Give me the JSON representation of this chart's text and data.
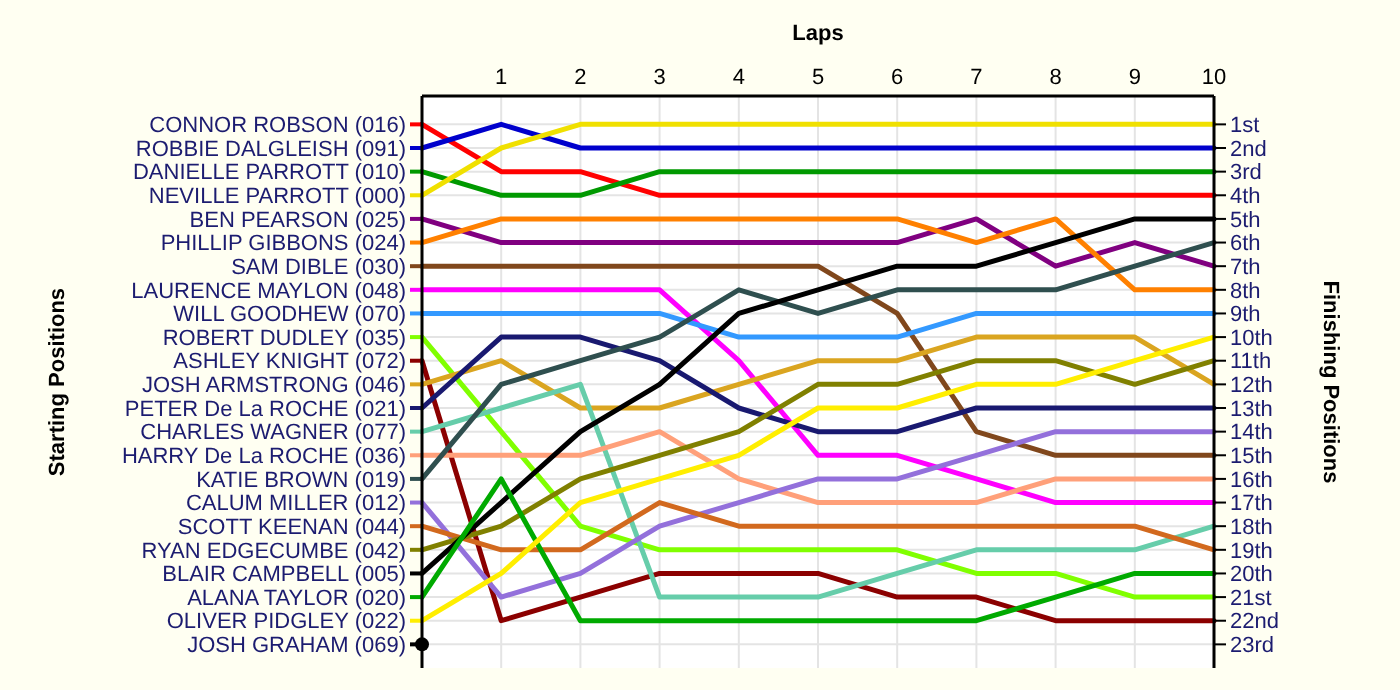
{
  "chart_data": {
    "type": "line",
    "xlabel": "Laps",
    "legend_title": "Starting Positions",
    "legend": "left",
    "y2label": "Finishing Positions",
    "x": [
      0,
      1,
      2,
      3,
      4,
      5,
      6,
      7,
      8,
      9,
      10
    ],
    "xlim": [
      0,
      10
    ],
    "xticks": [
      1,
      2,
      3,
      4,
      5,
      6,
      7,
      8,
      9,
      10
    ],
    "y2lim": [
      24,
      -0.2
    ],
    "y2ticks": [
      {
        "value": 1,
        "label": "1st"
      },
      {
        "value": 2,
        "label": "2nd"
      },
      {
        "value": 3,
        "label": "3rd"
      },
      {
        "value": 4,
        "label": "4th"
      },
      {
        "value": 5,
        "label": "5th"
      },
      {
        "value": 6,
        "label": "6th"
      },
      {
        "value": 7,
        "label": "7th"
      },
      {
        "value": 8,
        "label": "8th"
      },
      {
        "value": 9,
        "label": "9th"
      },
      {
        "value": 10,
        "label": "10th"
      },
      {
        "value": 11,
        "label": "11th"
      },
      {
        "value": 12,
        "label": "12th"
      },
      {
        "value": 13,
        "label": "13th"
      },
      {
        "value": 14,
        "label": "14th"
      },
      {
        "value": 15,
        "label": "15th"
      },
      {
        "value": 16,
        "label": "16th"
      },
      {
        "value": 17,
        "label": "17th"
      },
      {
        "value": 18,
        "label": "18th"
      },
      {
        "value": 19,
        "label": "19th"
      },
      {
        "value": 20,
        "label": "20th"
      },
      {
        "value": 21,
        "label": "21st"
      },
      {
        "value": 22,
        "label": "22nd"
      },
      {
        "value": 23,
        "label": "23rd"
      }
    ],
    "grid": true,
    "marker": "none",
    "line_style": "solid",
    "series": [
      {
        "name": "CONNOR ROBSON (016)",
        "axis": "y2",
        "color": "#ff0000",
        "values": [
          1,
          3,
          3,
          4,
          4,
          4,
          4,
          4,
          4,
          4,
          4
        ]
      },
      {
        "name": "ROBBIE DALGLEISH (091)",
        "axis": "y2",
        "color": "#0000cc",
        "values": [
          2,
          1,
          2,
          2,
          2,
          2,
          2,
          2,
          2,
          2,
          2
        ]
      },
      {
        "name": "DANIELLE PARROTT (010)",
        "axis": "y2",
        "color": "#009900",
        "values": [
          3,
          4,
          4,
          3,
          3,
          3,
          3,
          3,
          3,
          3,
          3
        ]
      },
      {
        "name": "NEVILLE PARROTT (000)",
        "axis": "y2",
        "color": "#f0e000",
        "values": [
          4,
          2,
          1,
          1,
          1,
          1,
          1,
          1,
          1,
          1,
          1
        ]
      },
      {
        "name": "BEN PEARSON (025)",
        "axis": "y2",
        "color": "#800080",
        "values": [
          5,
          6,
          6,
          6,
          6,
          6,
          6,
          5,
          7,
          6,
          7
        ]
      },
      {
        "name": "PHILLIP GIBBONS (024)",
        "axis": "y2",
        "color": "#ff8000",
        "values": [
          6,
          5,
          5,
          5,
          5,
          5,
          5,
          6,
          5,
          8,
          8
        ]
      },
      {
        "name": "SAM DIBLE (030)",
        "axis": "y2",
        "color": "#80471c",
        "values": [
          7,
          7,
          7,
          7,
          7,
          7,
          9,
          14,
          15,
          15,
          15
        ]
      },
      {
        "name": "LAURENCE MAYLON (048)",
        "axis": "y2",
        "color": "#ff00ff",
        "values": [
          8,
          8,
          8,
          8,
          11,
          15,
          15,
          16,
          17,
          17,
          17
        ]
      },
      {
        "name": "WILL GOODHEW (070)",
        "axis": "y2",
        "color": "#3399ff",
        "values": [
          9,
          9,
          9,
          9,
          10,
          10,
          10,
          9,
          9,
          9,
          9
        ]
      },
      {
        "name": "ROBERT DUDLEY (035)",
        "axis": "y2",
        "color": "#80ff00",
        "values": [
          10,
          14,
          18,
          19,
          19,
          19,
          19,
          20,
          20,
          21,
          21
        ]
      },
      {
        "name": "ASHLEY KNIGHT (072)",
        "axis": "y2",
        "color": "#8b0000",
        "values": [
          11,
          22,
          21,
          20,
          20,
          20,
          21,
          21,
          22,
          22,
          22
        ]
      },
      {
        "name": "JOSH ARMSTRONG (046)",
        "axis": "y2",
        "color": "#daa520",
        "values": [
          12,
          11,
          13,
          13,
          12,
          11,
          11,
          10,
          10,
          10,
          12
        ]
      },
      {
        "name": "PETER De La ROCHE (021)",
        "axis": "y2",
        "color": "#191970",
        "values": [
          13,
          10,
          10,
          11,
          13,
          14,
          14,
          13,
          13,
          13,
          13
        ]
      },
      {
        "name": "CHARLES WAGNER (077)",
        "axis": "y2",
        "color": "#66cdaa",
        "values": [
          14,
          13,
          12,
          21,
          21,
          21,
          20,
          19,
          19,
          19,
          18
        ]
      },
      {
        "name": "HARRY De La ROCHE (036)",
        "axis": "y2",
        "color": "#ffa07a",
        "values": [
          15,
          15,
          15,
          14,
          16,
          17,
          17,
          17,
          16,
          16,
          16
        ]
      },
      {
        "name": "KATIE BROWN (019)",
        "axis": "y2",
        "color": "#2f4f4f",
        "values": [
          16,
          12,
          11,
          10,
          8,
          9,
          8,
          8,
          8,
          7,
          6
        ]
      },
      {
        "name": "CALUM MILLER (012)",
        "axis": "y2",
        "color": "#9370db",
        "values": [
          17,
          21,
          20,
          18,
          17,
          16,
          16,
          15,
          14,
          14,
          14
        ]
      },
      {
        "name": "SCOTT KEENAN (044)",
        "axis": "y2",
        "color": "#d2691e",
        "values": [
          18,
          19,
          19,
          17,
          18,
          18,
          18,
          18,
          18,
          18,
          19
        ]
      },
      {
        "name": "RYAN EDGECUMBE (042)",
        "axis": "y2",
        "color": "#808000",
        "values": [
          19,
          18,
          16,
          15,
          14,
          12,
          12,
          11,
          11,
          12,
          11
        ]
      },
      {
        "name": "BLAIR CAMPBELL (005)",
        "axis": "y2",
        "color": "#000000",
        "values": [
          20,
          17,
          14,
          12,
          9,
          8,
          7,
          7,
          6,
          5,
          5
        ]
      },
      {
        "name": "ALANA TAYLOR (020)",
        "axis": "y2",
        "color": "#00aa00",
        "values": [
          21,
          16,
          22,
          22,
          22,
          22,
          22,
          22,
          21,
          20,
          20
        ]
      },
      {
        "name": "OLIVER PIDGLEY (022)",
        "axis": "y2",
        "color": "#ffee00",
        "values": [
          22,
          20,
          17,
          16,
          15,
          13,
          13,
          12,
          12,
          11,
          10
        ]
      },
      {
        "name": "JOSH GRAHAM (069)",
        "axis": "y2",
        "color": "#000000",
        "marker": "circle",
        "values": [
          23,
          null,
          null,
          null,
          null,
          null,
          null,
          null,
          null,
          null,
          null
        ]
      }
    ]
  }
}
